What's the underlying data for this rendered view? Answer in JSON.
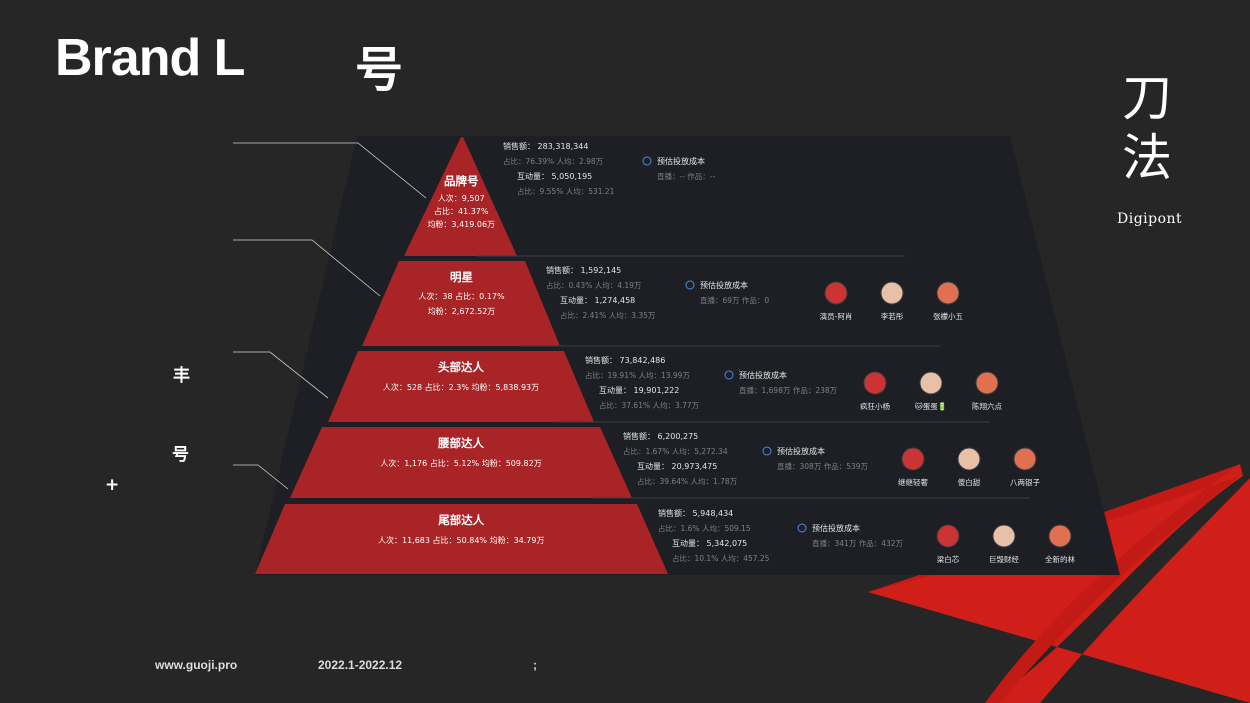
{
  "header": {
    "title": "Brand L",
    "title_suffix": "号"
  },
  "logo": {
    "cn_line1": "刀",
    "cn_line2": "法",
    "en": "Digipont"
  },
  "side_labels": {
    "a": "丰",
    "b": "号",
    "c": "+"
  },
  "footer": {
    "site": "www.guoji.pro",
    "period": "2022.1-2022.12",
    "mark": ";"
  },
  "colors": {
    "background": "#262626",
    "panel": "#1d1f24",
    "pyramid": "#a82426",
    "accent": "#d01e18",
    "text_dim": "#7d8087"
  },
  "tiers": [
    {
      "name": "品牌号",
      "count_line": "人次：9,507",
      "share_line": "占比：41.37%",
      "avg_line": "均粉：3,419.06万",
      "sales_label": "销售额：",
      "sales": "283,318,344",
      "sales_sub": "占比：76.39%   人均：2.98万",
      "inter_label": "互动量：",
      "inter": "5,050,195",
      "inter_sub": "占比：9.55%   人均：531.21",
      "cost_label": "预估投放成本",
      "cost_sub": "直播：--   作品：--",
      "kols": []
    },
    {
      "name": "明星",
      "count_line": "人次：38    占比：0.17%",
      "avg_line": "均粉：2,672.52万",
      "sales_label": "销售额：",
      "sales": "1,592,145",
      "sales_sub": "占比：0.43%   人均：4.19万",
      "inter_label": "互动量：",
      "inter": "1,274,458",
      "inter_sub": "占比：2.41%   人均：3.35万",
      "cost_label": "预估投放成本",
      "cost_sub": "直播：69万   作品：0",
      "kols": [
        "演员-阿肖",
        "李若彤",
        "张檬小五"
      ]
    },
    {
      "name": "头部达人",
      "count_line": "人次：528      占比：2.3%      均粉：5,838.93万",
      "sales_label": "销售额：",
      "sales": "73,842,486",
      "sales_sub": "占比：19.91%   人均：13.99万",
      "inter_label": "互动量：",
      "inter": "19,901,222",
      "inter_sub": "占比：37.61%   人均：3.77万",
      "cost_label": "预估投放成本",
      "cost_sub": "直播：1,698万   作品：238万",
      "kols": [
        "疯狂小杨",
        "🐱蛋蛋🔋",
        "陈翔六点"
      ]
    },
    {
      "name": "腰部达人",
      "count_line": "人次：1,176      占比：5.12%      均粉：509.82万",
      "sales_label": "销售额：",
      "sales": "6,200,275",
      "sales_sub": "占比：1.67%   人均：5,272.34",
      "inter_label": "互动量：",
      "inter": "20,973,475",
      "inter_sub": "占比：39.64%   人均：1.78万",
      "cost_label": "预估投放成本",
      "cost_sub": "直播：308万   作品：539万",
      "kols": [
        "继继轻奢",
        "傻白甜",
        "八两银子"
      ]
    },
    {
      "name": "尾部达人",
      "count_line": "人次：11,683      占比：50.84%      均粉：34.79万",
      "sales_label": "销售额：",
      "sales": "5,948,434",
      "sales_sub": "占比：1.6%   人均：509.15",
      "inter_label": "互动量：",
      "inter": "5,342,075",
      "inter_sub": "占比：10.1%   人均：457.25",
      "cost_label": "预估投放成本",
      "cost_sub": "直播：341万   作品：432万",
      "kols": [
        "梁白芯",
        "巨毁财经",
        "全新的林"
      ]
    }
  ]
}
